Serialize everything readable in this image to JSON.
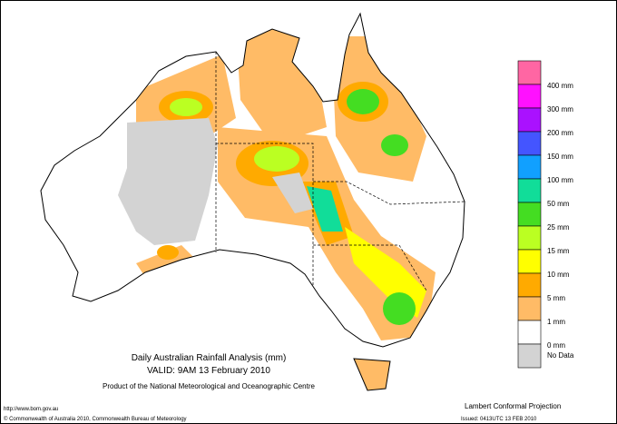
{
  "map": {
    "title": "Daily Australian Rainfall Analysis (mm)",
    "valid": "VALID: 9AM 13 February 2010",
    "product": "Product of the National Meteorological and Oceanographic Centre",
    "url": "http://www.bom.gov.au",
    "copyright": "© Commonwealth of Australia 2010, Commonwealth Bureau of Meteorology",
    "projection": "Lambert Conformal Projection",
    "issued": "Issued: 0413UTC 13 FEB 2010",
    "legend": {
      "colors": [
        "#ff66a3",
        "#ff11ff",
        "#aa11ff",
        "#4455ff",
        "#11a0ff",
        "#11dd99",
        "#44dd22",
        "#bbff22",
        "#ffff00",
        "#ffaa00",
        "#ffbb66",
        "#ffffff",
        "#d3d3d3"
      ],
      "labels": [
        "400 mm",
        "300 mm",
        "200 mm",
        "150 mm",
        "100 mm",
        "50 mm",
        "25 mm",
        "15 mm",
        "10 mm",
        "5 mm",
        "1 mm",
        "0 mm",
        "No Data"
      ]
    }
  }
}
